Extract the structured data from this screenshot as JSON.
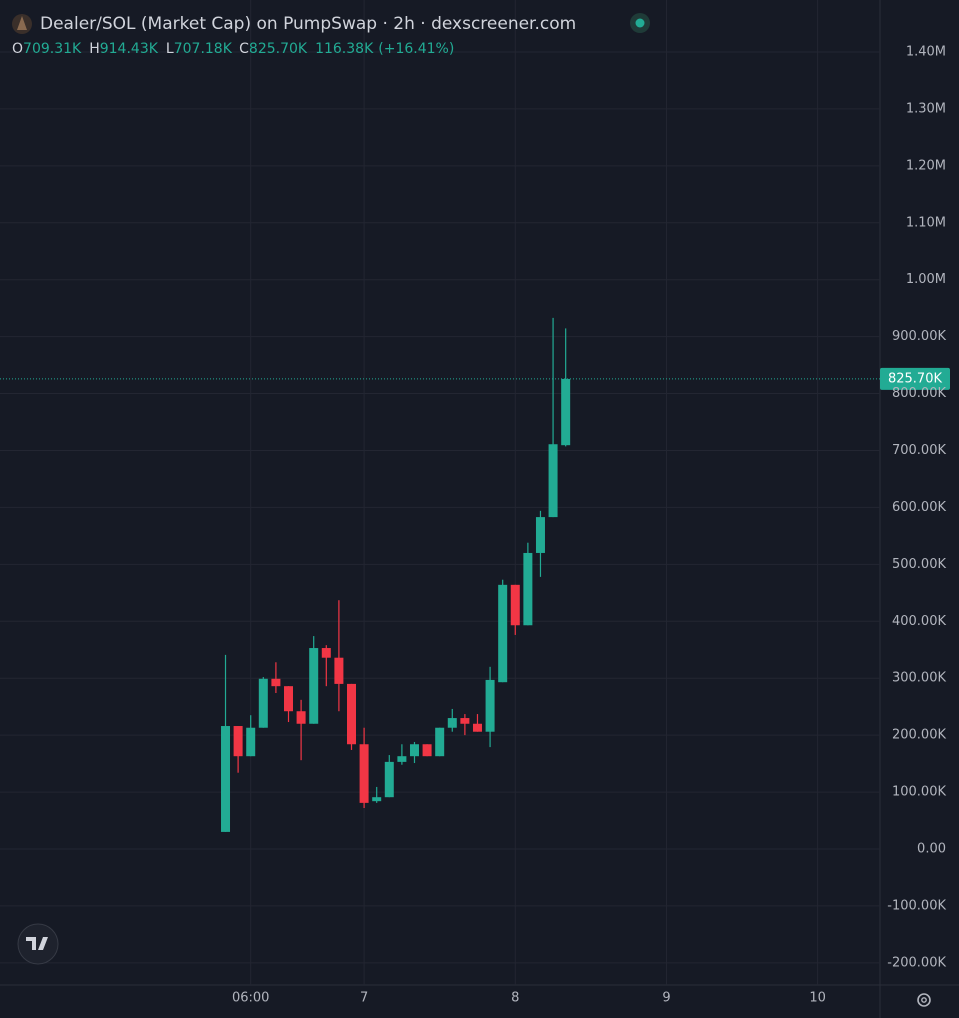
{
  "chart_data": {
    "type": "candlestick",
    "title": "Dealer/SOL (Market Cap) on PumpSwap · 2h · dexscreener.com",
    "header_values": [
      {
        "key": "O",
        "label": "709.31K"
      },
      {
        "key": "H",
        "label": "914.43K"
      },
      {
        "key": "L",
        "label": "707.18K"
      },
      {
        "key": "C",
        "label": "825.70K"
      }
    ],
    "change": "116.38K",
    "change_pct": "(+16.41%)",
    "last_price_label": "825.70K",
    "up_color": "#22ab94",
    "down_color": "#f23645",
    "x": [
      2,
      4,
      6,
      8,
      10,
      12,
      14,
      16,
      18,
      20,
      22,
      24,
      26,
      28,
      30,
      32,
      34,
      36,
      38,
      40,
      42,
      44,
      46,
      48,
      50,
      52,
      54,
      56
    ],
    "open": [
      30000,
      216000,
      163000,
      213000,
      299000,
      286000,
      242000,
      220000,
      353000,
      336000,
      290000,
      184000,
      84000,
      91000,
      153000,
      163000,
      184000,
      163000,
      213000,
      230000,
      220000,
      206000,
      293000,
      464000,
      393000,
      520000,
      583000,
      709310
    ],
    "high": [
      341000,
      216000,
      235000,
      302000,
      328000,
      286000,
      262000,
      374000,
      358000,
      437000,
      290000,
      213000,
      109000,
      165000,
      184000,
      188000,
      184000,
      213000,
      246000,
      237000,
      237000,
      320000,
      473000,
      464000,
      538000,
      594000,
      933000,
      914430
    ],
    "low": [
      30000,
      134000,
      163000,
      213000,
      274000,
      223000,
      156000,
      220000,
      286000,
      242000,
      174000,
      72000,
      81000,
      91000,
      148000,
      151000,
      163000,
      163000,
      206000,
      200000,
      206000,
      179000,
      293000,
      376000,
      393000,
      478000,
      583000,
      707180
    ],
    "close": [
      216000,
      163000,
      213000,
      299000,
      286000,
      242000,
      220000,
      353000,
      336000,
      290000,
      184000,
      81000,
      91000,
      153000,
      163000,
      184000,
      163000,
      213000,
      230000,
      220000,
      206000,
      297000,
      464000,
      393000,
      520000,
      583000,
      711000,
      825700
    ],
    "xlim": [
      -33.8,
      105.9
    ],
    "xticks": [
      {
        "value": 6,
        "label": "06:00"
      },
      {
        "value": 24,
        "label": "7"
      },
      {
        "value": 48,
        "label": "8"
      },
      {
        "value": 72,
        "label": "9"
      },
      {
        "value": 96,
        "label": "10"
      }
    ],
    "ylim": [
      -238900,
      1491300
    ],
    "yticks": [
      {
        "value": -200000,
        "label": "-200.00K"
      },
      {
        "value": -100000,
        "label": "-100.00K"
      },
      {
        "value": 0,
        "label": "0.00"
      },
      {
        "value": 100000,
        "label": "100.00K"
      },
      {
        "value": 200000,
        "label": "200.00K"
      },
      {
        "value": 300000,
        "label": "300.00K"
      },
      {
        "value": 400000,
        "label": "400.00K"
      },
      {
        "value": 500000,
        "label": "500.00K"
      },
      {
        "value": 600000,
        "label": "600.00K"
      },
      {
        "value": 700000,
        "label": "700.00K"
      },
      {
        "value": 800000,
        "label": "800.00K"
      },
      {
        "value": 900000,
        "label": "900.00K"
      },
      {
        "value": 1000000,
        "label": "1.00M"
      },
      {
        "value": 1100000,
        "label": "1.10M"
      },
      {
        "value": 1200000,
        "label": "1.20M"
      },
      {
        "value": 1300000,
        "label": "1.30M"
      },
      {
        "value": 1400000,
        "label": "1.40M"
      }
    ],
    "grid": true
  }
}
